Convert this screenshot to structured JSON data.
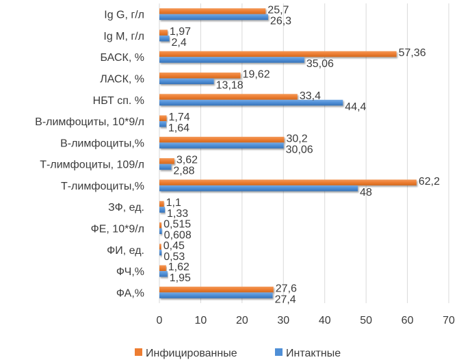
{
  "colors": {
    "infected": "#ed7d31",
    "intact": "#4f8fd6",
    "grid": "#d9d9d9",
    "text": "#3a3a3a"
  },
  "chart_data": {
    "type": "bar",
    "orientation": "horizontal",
    "categories": [
      "Ig G, г/л",
      "Ig M, г/л",
      "БАСК, %",
      "ЛАСК, %",
      "НБТ сп. %",
      "B-лимфоциты, 10*9/л",
      "B-лимфоциты,%",
      "Т-лимфоциты, 109/л",
      "Т-лимфоциты,%",
      "ЗФ, ед.",
      "ФЕ, 10*9/л",
      "ФИ, ед.",
      "ФЧ,%",
      "ФА,%"
    ],
    "series": [
      {
        "name": "Инфицированные",
        "values": [
          25.7,
          1.97,
          57.36,
          19.62,
          33.4,
          1.74,
          30.2,
          3.62,
          62.2,
          1.1,
          0.515,
          0.45,
          1.62,
          27.6
        ],
        "labels": [
          "25,7",
          "1,97",
          "57,36",
          "19,62",
          "33,4",
          "1,74",
          "30,2",
          "3,62",
          "62,2",
          "1,1",
          "0,515",
          "0,45",
          "1,62",
          "27,6"
        ]
      },
      {
        "name": "Интактные",
        "values": [
          26.3,
          2.4,
          35.06,
          13.18,
          44.4,
          1.64,
          30.06,
          2.88,
          48,
          1.33,
          0.608,
          0.53,
          1.95,
          27.4
        ],
        "labels": [
          "26,3",
          "2,4",
          "35,06",
          "13,18",
          "44,4",
          "1,64",
          "30,06",
          "2,88",
          "48",
          "1,33",
          "0,608",
          "0,53",
          "1,95",
          "27,4"
        ]
      }
    ],
    "xticks": [
      "0",
      "10",
      "20",
      "30",
      "40",
      "50",
      "60",
      "70"
    ],
    "xlim": [
      0,
      70
    ],
    "grid": "vertical",
    "legend_position": "bottom"
  }
}
